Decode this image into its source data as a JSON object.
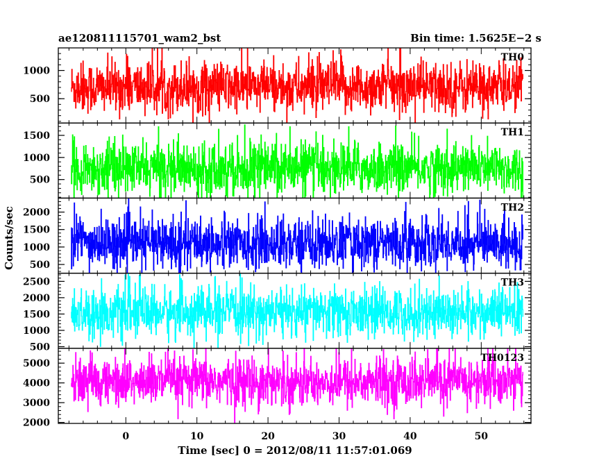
{
  "header": {
    "left": "ae120811115701_wam2_bst",
    "right": "Bin time: 1.5625E−2 s"
  },
  "chart_data": {
    "type": "line",
    "style": "histogram",
    "xlabel": "Time [sec] 0 = 2012/08/11 11:57:01.069",
    "ylabel": "Counts/sec",
    "xlim": [
      -9.5,
      57
    ],
    "data_range": [
      -7.7,
      55.9
    ],
    "x_ticks": [
      0,
      10,
      20,
      30,
      40,
      50
    ],
    "panels": [
      {
        "name": "TH0",
        "color": "#ff0000",
        "ylim": [
          70,
          1400
        ],
        "y_ticks": [
          500,
          1000
        ],
        "level": {
          "mean": 700,
          "spread": 230,
          "min": 80,
          "max": 1500
        }
      },
      {
        "name": "TH1",
        "color": "#00ff00",
        "ylim": [
          80,
          1780
        ],
        "y_ticks": [
          500,
          1000,
          1500
        ],
        "level": {
          "mean": 750,
          "spread": 290,
          "min": 90,
          "max": 1900
        }
      },
      {
        "name": "TH2",
        "color": "#0000ff",
        "ylim": [
          250,
          2400
        ],
        "y_ticks": [
          500,
          1000,
          1500,
          2000
        ],
        "level": {
          "mean": 1100,
          "spread": 360,
          "min": 260,
          "max": 2500
        }
      },
      {
        "name": "TH3",
        "color": "#00ffff",
        "ylim": [
          450,
          2750
        ],
        "y_ticks": [
          500,
          1000,
          1500,
          2000,
          2500
        ],
        "level": {
          "mean": 1550,
          "spread": 380,
          "min": 460,
          "max": 2900
        }
      },
      {
        "name": "TH0123",
        "color": "#ff00ff",
        "ylim": [
          1950,
          5750
        ],
        "y_ticks": [
          2000,
          3000,
          4000,
          5000
        ],
        "level": {
          "mean": 4050,
          "spread": 620,
          "min": 1960,
          "max": 6000
        }
      }
    ]
  }
}
